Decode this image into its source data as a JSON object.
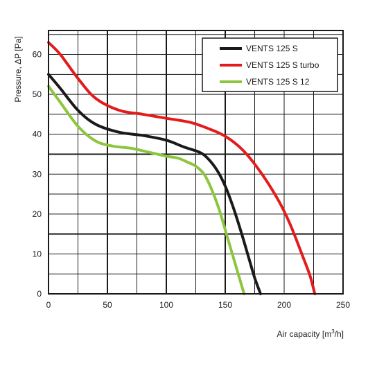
{
  "chart_data": {
    "type": "line",
    "title": "",
    "xlabel": "Air capacity [m",
    "xlabel_sup": "3",
    "xlabel_end": "/h]",
    "ylabel": "Pressure, ΔP [Pa]",
    "xlim": [
      0,
      250
    ],
    "ylim": [
      0,
      66
    ],
    "x_ticks": [
      0,
      50,
      100,
      150,
      200,
      250
    ],
    "y_ticks": [
      0,
      10,
      20,
      30,
      40,
      50,
      60
    ],
    "x_tick_labels": [
      "0",
      "50",
      "100",
      "150",
      "200",
      "250"
    ],
    "y_tick_labels": [
      "0",
      "10",
      "20",
      "30",
      "40",
      "50",
      "60"
    ],
    "x_grid_step": 25,
    "y_grid_step": 5,
    "bold_grid_x": [
      50,
      100,
      150
    ],
    "bold_grid_y": [
      15,
      35
    ],
    "grid": true,
    "legend_position": "top-right",
    "series": [
      {
        "name": "VENTS 125 S",
        "color": "#1a1a1a",
        "x": [
          0,
          10,
          25,
          40,
          60,
          80,
          100,
          115,
          128,
          135,
          143,
          150,
          157,
          164,
          170,
          175,
          180
        ],
        "y": [
          55,
          51.5,
          46,
          42.5,
          40.5,
          39.7,
          38.5,
          36.8,
          35.5,
          34,
          31,
          27,
          21.5,
          15,
          9,
          4,
          0
        ]
      },
      {
        "name": "VENTS 125 S turbo",
        "color": "#e31b1b",
        "x": [
          0,
          10,
          25,
          40,
          60,
          80,
          100,
          120,
          135,
          150,
          165,
          180,
          195,
          205,
          215,
          222,
          226
        ],
        "y": [
          63,
          60,
          54,
          49,
          46,
          45,
          44,
          43,
          41.5,
          39.5,
          36,
          30.5,
          23.5,
          17.5,
          10,
          4.5,
          0
        ]
      },
      {
        "name": "VENTS 125 S 12",
        "color": "#8cc63e",
        "x": [
          0,
          10,
          25,
          40,
          55,
          70,
          85,
          100,
          110,
          118,
          125,
          132,
          138,
          145,
          152,
          158,
          163,
          166
        ],
        "y": [
          52,
          48,
          42,
          38.3,
          37,
          36.5,
          35.5,
          34.5,
          34,
          33,
          32,
          30,
          26.5,
          21,
          14,
          8,
          3,
          0
        ]
      }
    ]
  }
}
